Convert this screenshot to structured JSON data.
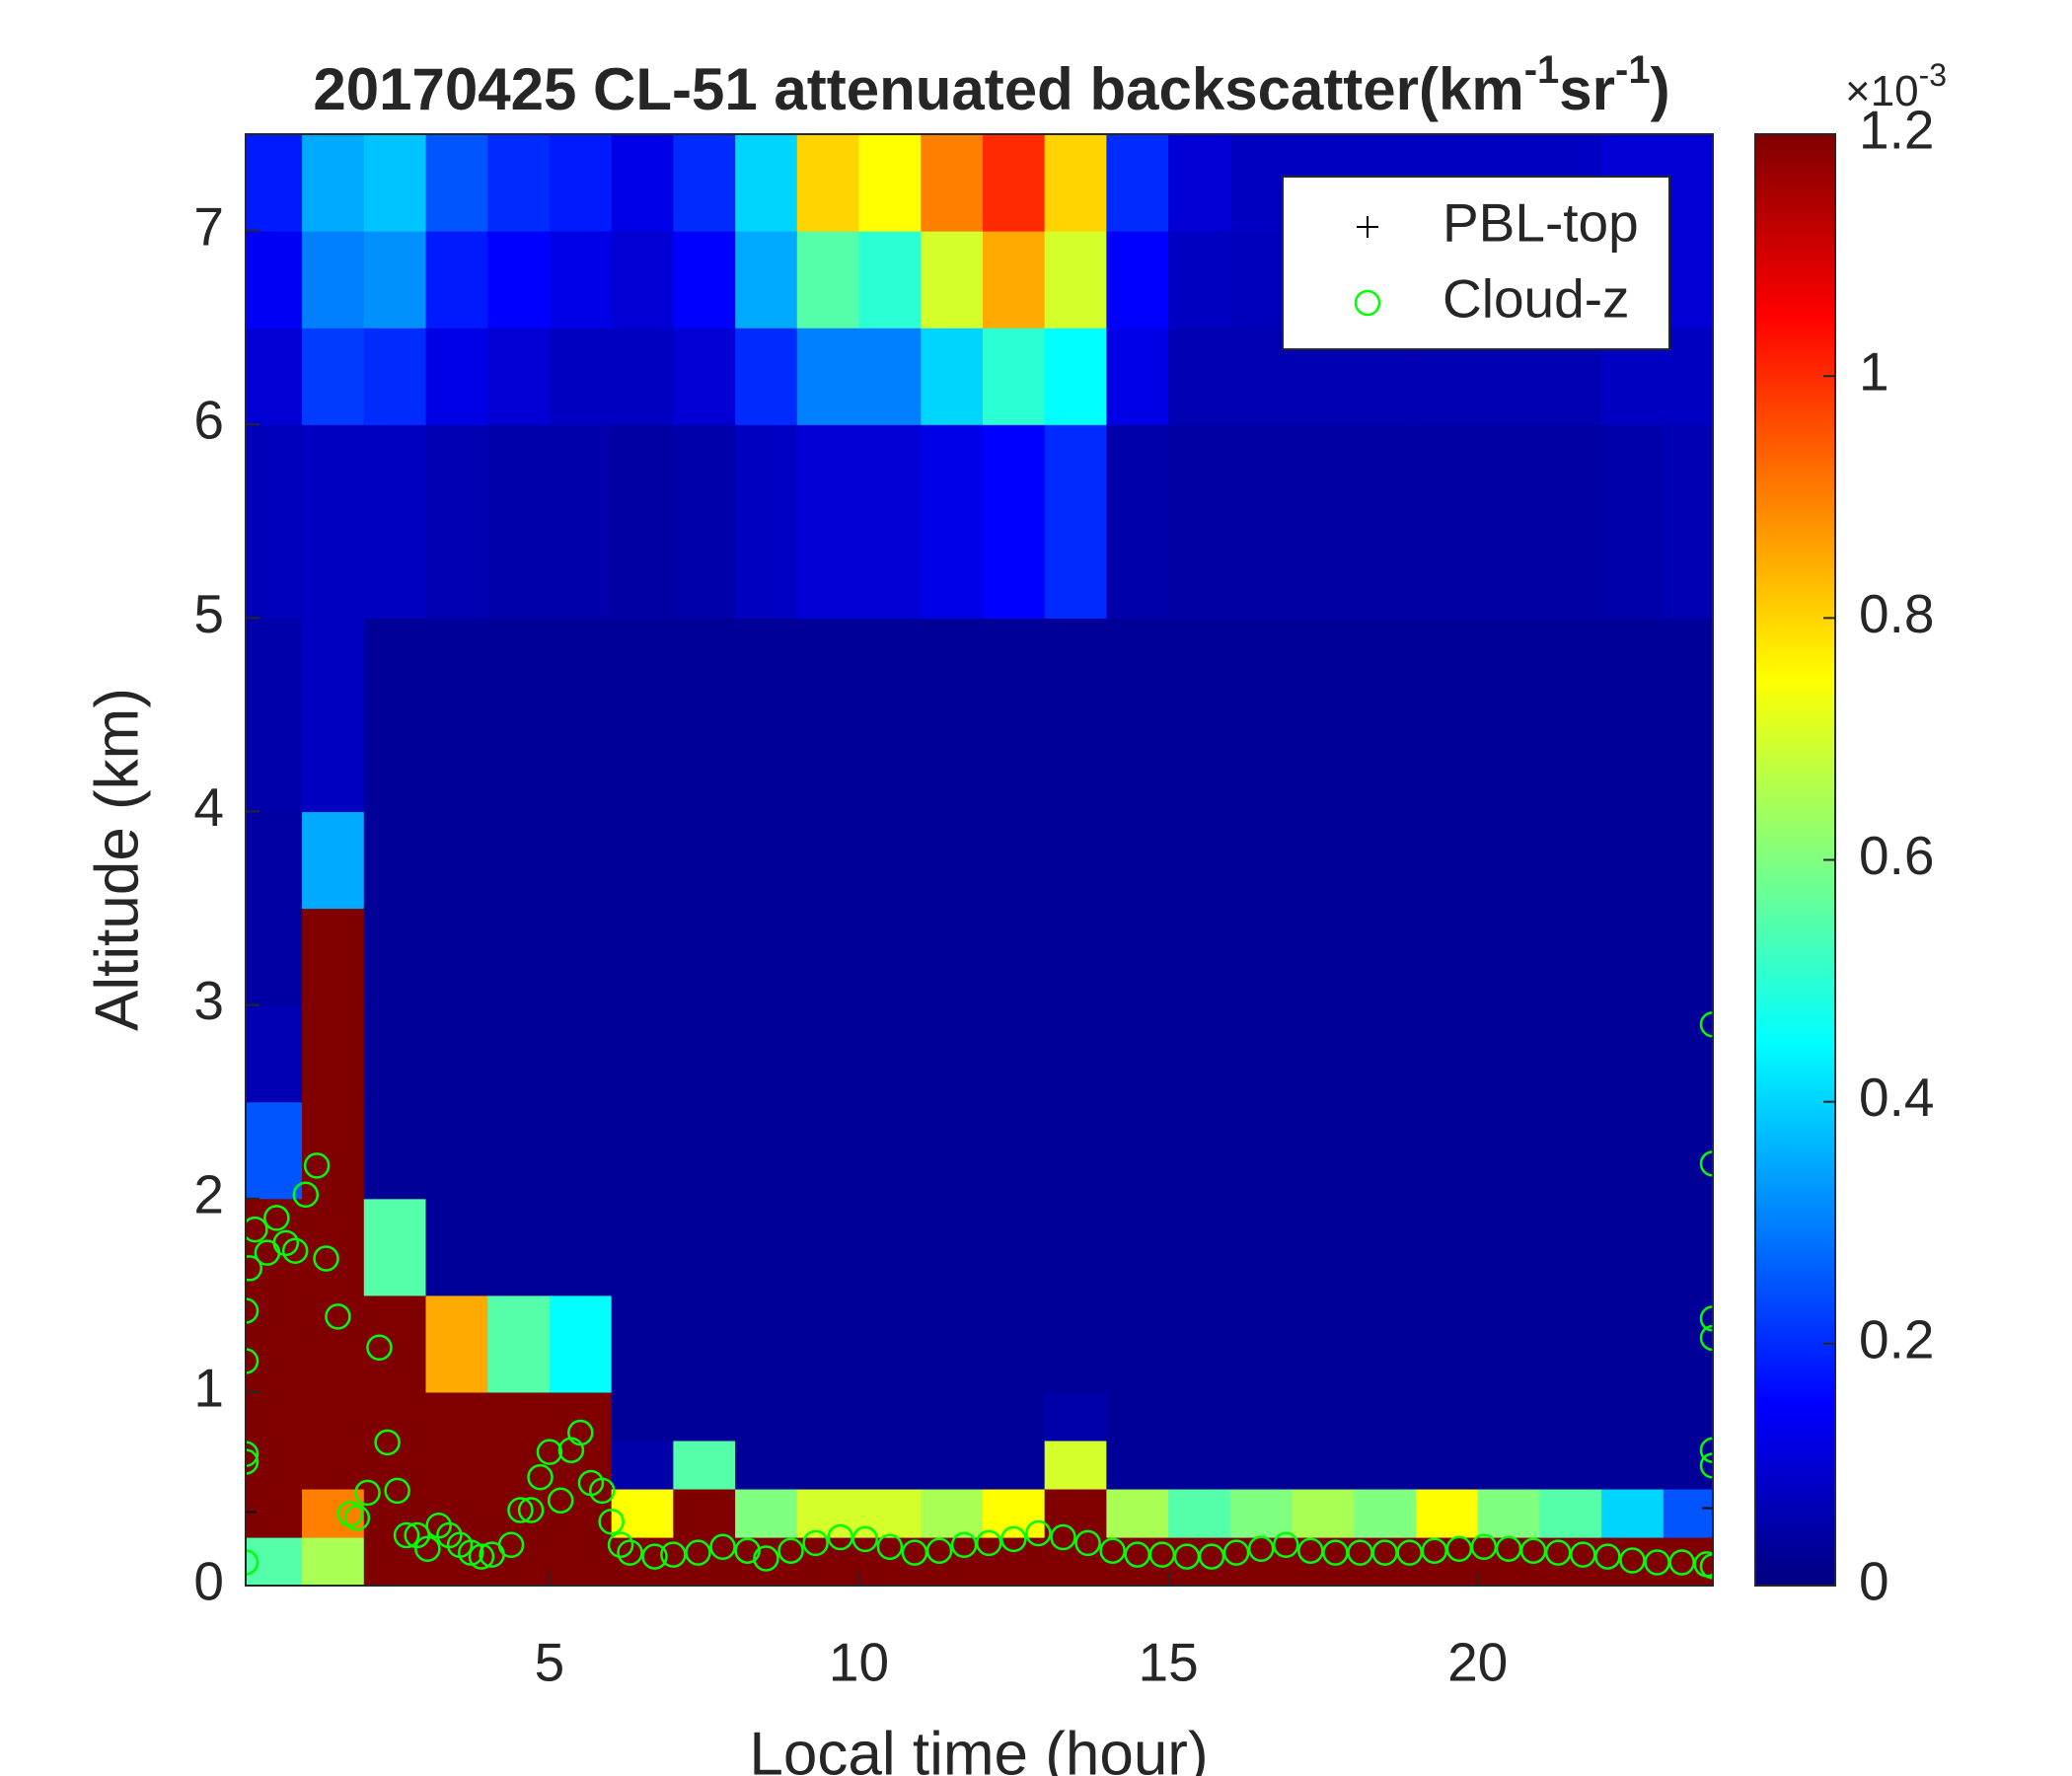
{
  "chart_data": {
    "type": "heatmap",
    "title": [
      "20170425  CL-51 attenuated backscatter(km",
      "-1",
      "sr",
      "-1",
      ")"
    ],
    "x_label": "Local time (hour)",
    "y_label": "Altitude (km)",
    "xlim": [
      0.09,
      23.8
    ],
    "ylim": [
      0,
      7.5
    ],
    "xticks": [
      5,
      10,
      15,
      20
    ],
    "yticks": [
      0,
      1,
      2,
      3,
      4,
      5,
      6,
      7
    ],
    "colormap": "jet",
    "clim": [
      0,
      1.2
    ],
    "colorbar_ticks": [
      0,
      0.2,
      0.4,
      0.6,
      0.8,
      1,
      1.2
    ],
    "colorbar_label": [
      "×10",
      "-3"
    ],
    "legend": "upper right",
    "heatmap": {
      "x_edges": [
        0,
        1,
        2,
        3,
        4,
        5,
        6,
        7,
        8,
        9,
        10,
        11,
        12,
        13,
        14,
        15,
        16,
        17,
        18,
        19,
        20,
        21,
        22,
        23,
        24
      ],
      "y_edges": [
        0,
        0.25,
        0.5,
        0.75,
        1,
        1.5,
        2,
        2.5,
        3,
        3.5,
        4,
        5,
        6,
        6.5,
        7,
        7.5
      ],
      "values": [
        [
          0.55,
          1.2,
          1.2,
          1.2,
          1.2,
          1.2,
          0.25,
          0.06,
          0.04,
          0.04,
          0.05,
          0.07,
          0.1,
          0.14,
          0.18
        ],
        [
          0.65,
          0.9,
          1.2,
          1.2,
          1.2,
          1.2,
          1.2,
          1.2,
          1.2,
          0.35,
          0.08,
          0.08,
          0.22,
          0.3,
          0.35
        ],
        [
          1.2,
          1.2,
          1.2,
          1.2,
          1.2,
          0.55,
          0.03,
          0.03,
          0.03,
          0.03,
          0.03,
          0.08,
          0.2,
          0.32,
          0.38
        ],
        [
          1.2,
          1.2,
          1.2,
          1.2,
          0.85,
          0.03,
          0.03,
          0.03,
          0.03,
          0.03,
          0.03,
          0.06,
          0.12,
          0.18,
          0.25
        ],
        [
          1.2,
          1.2,
          1.2,
          1.2,
          0.55,
          0.03,
          0.03,
          0.03,
          0.03,
          0.03,
          0.03,
          0.05,
          0.1,
          0.15,
          0.2
        ],
        [
          1.2,
          1.2,
          1.2,
          1.2,
          0.45,
          0.03,
          0.03,
          0.03,
          0.03,
          0.03,
          0.03,
          0.05,
          0.08,
          0.12,
          0.18
        ],
        [
          1.2,
          0.75,
          0.05,
          0.03,
          0.03,
          0.03,
          0.03,
          0.03,
          0.03,
          0.03,
          0.03,
          0.04,
          0.08,
          0.1,
          0.12
        ],
        [
          1.2,
          1.2,
          0.55,
          0.03,
          0.03,
          0.03,
          0.03,
          0.03,
          0.03,
          0.03,
          0.03,
          0.05,
          0.1,
          0.15,
          0.2
        ],
        [
          1.2,
          0.6,
          0.03,
          0.03,
          0.03,
          0.03,
          0.03,
          0.03,
          0.03,
          0.03,
          0.03,
          0.08,
          0.2,
          0.35,
          0.4
        ],
        [
          1.2,
          0.7,
          0.03,
          0.03,
          0.03,
          0.03,
          0.03,
          0.03,
          0.03,
          0.03,
          0.03,
          0.1,
          0.3,
          0.55,
          0.8
        ],
        [
          1.2,
          0.7,
          0.03,
          0.03,
          0.03,
          0.03,
          0.03,
          0.03,
          0.03,
          0.03,
          0.03,
          0.1,
          0.3,
          0.5,
          0.75
        ],
        [
          1.2,
          0.65,
          0.03,
          0.03,
          0.03,
          0.03,
          0.03,
          0.03,
          0.03,
          0.03,
          0.03,
          0.12,
          0.4,
          0.7,
          0.9
        ],
        [
          1.2,
          0.75,
          0.03,
          0.03,
          0.03,
          0.03,
          0.03,
          0.03,
          0.03,
          0.03,
          0.03,
          0.15,
          0.5,
          0.85,
          1.0
        ],
        [
          1.2,
          1.2,
          0.7,
          0.05,
          0.03,
          0.03,
          0.03,
          0.03,
          0.03,
          0.03,
          0.03,
          0.2,
          0.45,
          0.7,
          0.8
        ],
        [
          1.2,
          0.65,
          0.03,
          0.03,
          0.03,
          0.03,
          0.03,
          0.03,
          0.03,
          0.03,
          0.03,
          0.05,
          0.12,
          0.15,
          0.2
        ],
        [
          1.2,
          0.55,
          0.03,
          0.03,
          0.03,
          0.03,
          0.03,
          0.03,
          0.03,
          0.03,
          0.03,
          0.04,
          0.06,
          0.08,
          0.1
        ],
        [
          1.2,
          0.6,
          0.03,
          0.03,
          0.03,
          0.03,
          0.03,
          0.03,
          0.03,
          0.03,
          0.03,
          0.04,
          0.06,
          0.07,
          0.08
        ],
        [
          1.2,
          0.65,
          0.03,
          0.03,
          0.03,
          0.03,
          0.03,
          0.03,
          0.03,
          0.03,
          0.03,
          0.04,
          0.06,
          0.07,
          0.08
        ],
        [
          1.2,
          0.6,
          0.03,
          0.03,
          0.03,
          0.03,
          0.03,
          0.03,
          0.03,
          0.03,
          0.03,
          0.04,
          0.06,
          0.07,
          0.08
        ],
        [
          1.2,
          0.75,
          0.03,
          0.03,
          0.03,
          0.03,
          0.03,
          0.03,
          0.03,
          0.03,
          0.03,
          0.04,
          0.06,
          0.07,
          0.08
        ],
        [
          1.2,
          0.6,
          0.03,
          0.03,
          0.03,
          0.03,
          0.03,
          0.03,
          0.03,
          0.03,
          0.03,
          0.04,
          0.06,
          0.07,
          0.08
        ],
        [
          1.2,
          0.55,
          0.03,
          0.03,
          0.03,
          0.03,
          0.03,
          0.03,
          0.03,
          0.03,
          0.03,
          0.04,
          0.06,
          0.07,
          0.08
        ],
        [
          1.2,
          0.4,
          0.03,
          0.03,
          0.03,
          0.03,
          0.03,
          0.03,
          0.03,
          0.03,
          0.03,
          0.05,
          0.08,
          0.1,
          0.1
        ],
        [
          1.2,
          0.25,
          0.03,
          0.03,
          0.03,
          0.03,
          0.03,
          0.03,
          0.03,
          0.03,
          0.03,
          0.06,
          0.08,
          0.1,
          0.1
        ]
      ]
    },
    "series": [
      {
        "name": "PBL-top",
        "marker": "+",
        "color": "#000000",
        "x": [
          0.09,
          23.8
        ],
        "values": [
          0.38,
          0.4
        ]
      },
      {
        "name": "Cloud-z",
        "marker": "o",
        "color": "#00ff00",
        "x": [
          0.09,
          0.09,
          0.09,
          0.09,
          0.09,
          0.15,
          0.24,
          0.44,
          0.59,
          0.74,
          0.89,
          1.06,
          1.24,
          1.39,
          1.58,
          1.78,
          1.89,
          2.06,
          2.25,
          2.38,
          2.54,
          2.69,
          2.86,
          3.03,
          3.21,
          3.38,
          3.55,
          3.73,
          3.9,
          4.07,
          4.38,
          4.53,
          4.7,
          4.85,
          5.0,
          5.18,
          5.35,
          5.5,
          5.67,
          5.85,
          6.0,
          6.15,
          6.3,
          6.7,
          7.0,
          7.4,
          7.8,
          8.2,
          8.5,
          8.9,
          9.3,
          9.7,
          10.1,
          10.5,
          10.9,
          11.3,
          11.7,
          12.1,
          12.5,
          12.9,
          13.3,
          13.7,
          14.1,
          14.5,
          14.9,
          15.3,
          15.7,
          16.1,
          16.5,
          16.9,
          17.3,
          17.7,
          18.1,
          18.5,
          18.9,
          19.3,
          19.7,
          20.1,
          20.5,
          20.9,
          21.3,
          21.7,
          22.1,
          22.5,
          22.9,
          23.3,
          23.7,
          23.8,
          23.8,
          23.8,
          23.8,
          23.8,
          23.8,
          23.8
        ],
        "values": [
          0.12,
          0.64,
          1.16,
          1.42,
          0.68,
          1.64,
          1.84,
          1.72,
          1.9,
          1.77,
          1.73,
          2.02,
          2.17,
          1.69,
          1.39,
          0.37,
          0.35,
          0.48,
          1.23,
          0.74,
          0.49,
          0.26,
          0.26,
          0.19,
          0.31,
          0.26,
          0.21,
          0.17,
          0.15,
          0.16,
          0.21,
          0.39,
          0.39,
          0.56,
          0.69,
          0.44,
          0.7,
          0.79,
          0.53,
          0.49,
          0.33,
          0.21,
          0.17,
          0.15,
          0.16,
          0.17,
          0.2,
          0.18,
          0.14,
          0.18,
          0.22,
          0.25,
          0.24,
          0.2,
          0.17,
          0.18,
          0.21,
          0.22,
          0.24,
          0.27,
          0.25,
          0.22,
          0.18,
          0.16,
          0.16,
          0.15,
          0.15,
          0.17,
          0.19,
          0.21,
          0.18,
          0.17,
          0.17,
          0.17,
          0.17,
          0.18,
          0.19,
          0.2,
          0.19,
          0.18,
          0.17,
          0.16,
          0.15,
          0.13,
          0.12,
          0.12,
          0.11,
          0.1,
          0.62,
          0.7,
          1.28,
          1.38,
          2.18,
          2.9
        ]
      }
    ]
  }
}
